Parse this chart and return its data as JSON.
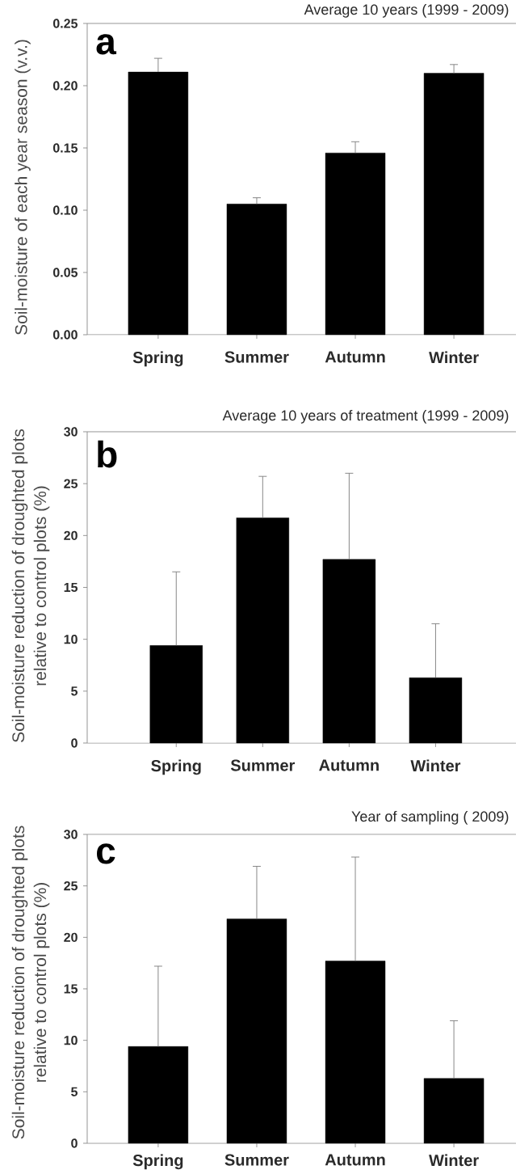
{
  "chart_data": [
    {
      "type": "bar",
      "title": "Average 10 years (1999 - 2009)",
      "annotations": [
        "a"
      ],
      "ylabel": "Soil-moisture of each year season (v.v.)",
      "categories": [
        "Spring",
        "Summer",
        "Autumn",
        "Winter"
      ],
      "values": [
        0.211,
        0.105,
        0.146,
        0.21
      ],
      "errors": [
        [
          0.211,
          0.222
        ],
        [
          0.105,
          0.11
        ],
        [
          0.146,
          0.155
        ],
        [
          0.21,
          0.217
        ]
      ],
      "color": "#000000",
      "ylim": [
        0,
        0.25
      ],
      "yticks": [
        {
          "value": 0,
          "label": "0.00"
        },
        {
          "value": 0.05,
          "label": "0.05"
        },
        {
          "value": 0.1,
          "label": "0.10"
        },
        {
          "value": 0.15,
          "label": "0.15"
        },
        {
          "value": 0.2,
          "label": "0.20"
        },
        {
          "value": 0.25,
          "label": "0.25"
        }
      ]
    },
    {
      "type": "bar",
      "title": "Average 10 years of treatment (1999 - 2009)",
      "annotations": [
        "b"
      ],
      "ylabel": "Soil-moisture reduction of droughted plots relative to control plots (%)",
      "categories": [
        "Spring",
        "Summer",
        "Autumn",
        "Winter"
      ],
      "values": [
        9.4,
        21.7,
        17.7,
        6.3
      ],
      "errors": [
        [
          9.4,
          16.5
        ],
        [
          21.7,
          25.7
        ],
        [
          17.7,
          26.0
        ],
        [
          6.3,
          11.5
        ]
      ],
      "color": "#000000",
      "ylim": [
        0,
        30
      ],
      "yticks": [
        0,
        5,
        10,
        15,
        20,
        25,
        30
      ]
    },
    {
      "type": "bar",
      "title": "Year of sampling ( 2009)",
      "annotations": [
        "c"
      ],
      "ylabel": "Soil-moisture reduction of droughted plots relative to control plots (%)",
      "categories": [
        "Spring",
        "Summer",
        "Autumn",
        "Winter"
      ],
      "values": [
        9.4,
        21.8,
        17.7,
        6.3
      ],
      "errors": [
        [
          9.4,
          17.2
        ],
        [
          21.8,
          26.9
        ],
        [
          17.7,
          27.8
        ],
        [
          6.3,
          11.9
        ]
      ],
      "color": "#000000",
      "ylim": [
        0,
        30
      ],
      "yticks": [
        0,
        5,
        10,
        15,
        20,
        25,
        30
      ]
    }
  ]
}
